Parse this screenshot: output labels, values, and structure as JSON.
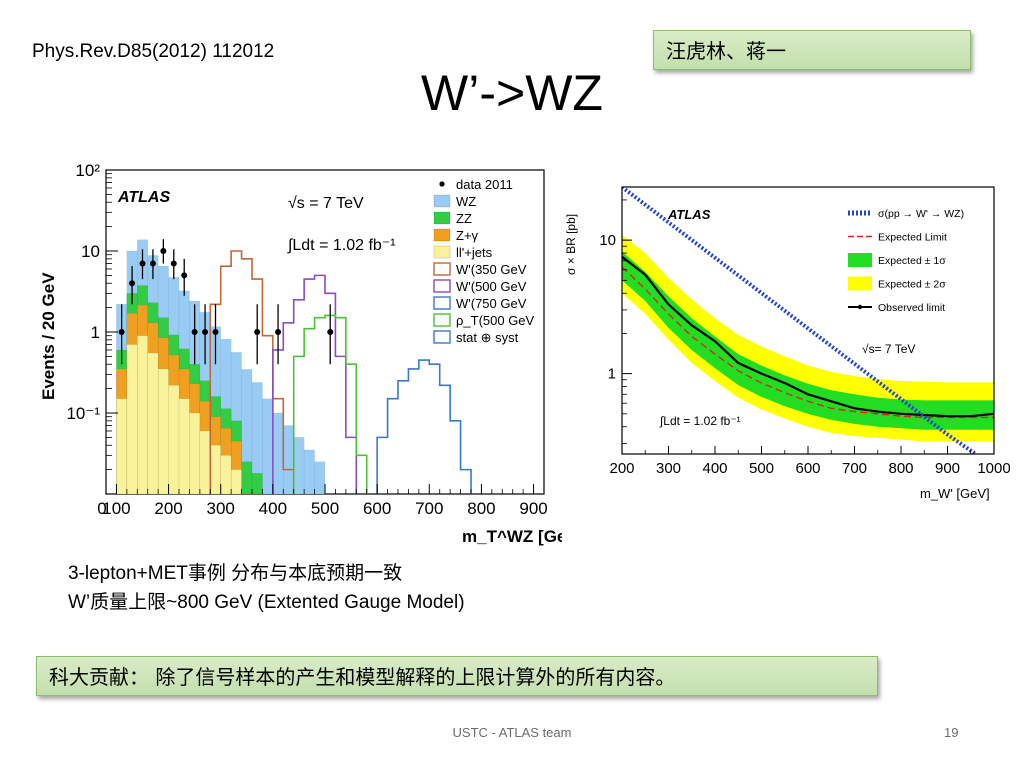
{
  "header": {
    "reference": "Phys.Rev.D85(2012) 112012",
    "title": "W’->WZ",
    "authors": "汪虎林、蒋一"
  },
  "captions": {
    "line1": "3-lepton+MET事例 分布与本底预期一致",
    "line2": "W’质量上限~800 GeV (Extented Gauge Model)"
  },
  "contribution": "科大贡献： 除了信号样本的产生和模型解释的上限计算外的所有内容。",
  "footer": {
    "team": "USTC - ATLAS team",
    "page": "19"
  },
  "chart_data": [
    {
      "type": "bar",
      "title": "",
      "atlas_label": "ATLAS",
      "energy_label": "√s = 7 TeV",
      "lumi_label": "∫Ldt = 1.02 fb⁻¹",
      "xlabel": "m_T^WZ [GeV]",
      "ylabel": "Events / 20 GeV",
      "xlim": [
        80,
        920
      ],
      "ylim": [
        0.01,
        100
      ],
      "yscale": "log",
      "xticks": [
        0,
        100,
        200,
        300,
        400,
        500,
        600,
        700,
        800,
        900
      ],
      "yticks": [
        {
          "value": 100,
          "label": "10²"
        },
        {
          "value": 10,
          "label": "10"
        },
        {
          "value": 1,
          "label": "1"
        },
        {
          "value": 0.1,
          "label": "10⁻¹"
        }
      ],
      "legend_position": "top-right",
      "bin_width": 20,
      "bin_edges_start": 100,
      "stack_colors": {
        "llj": "#f8f29a",
        "zg": "#f0a020",
        "zz": "#33cc44",
        "wz": "#99ccf5"
      },
      "stack_series": [
        {
          "name": "ll'+jets",
          "key": "llj",
          "values": [
            0.15,
            0.7,
            0.9,
            0.55,
            0.35,
            0.22,
            0.15,
            0.1,
            0.06,
            0.04,
            0.03,
            0.02,
            0,
            0,
            0,
            0,
            0,
            0,
            0,
            0
          ]
        },
        {
          "name": "Z+γ",
          "key": "zg",
          "values": [
            0.2,
            1.0,
            1.25,
            0.75,
            0.5,
            0.3,
            0.2,
            0.13,
            0.08,
            0.05,
            0.035,
            0.025,
            0,
            0,
            0,
            0,
            0,
            0,
            0,
            0
          ]
        },
        {
          "name": "ZZ",
          "key": "zz",
          "values": [
            0.25,
            1.3,
            1.6,
            1.0,
            0.65,
            0.4,
            0.27,
            0.17,
            0.11,
            0.07,
            0.048,
            0.035,
            0.025,
            0.018,
            0,
            0,
            0,
            0,
            0,
            0
          ]
        },
        {
          "name": "WZ",
          "key": "wz",
          "values": [
            1.6,
            7,
            10,
            6.5,
            5,
            3.8,
            2.6,
            2.0,
            1.5,
            1.0,
            0.7,
            0.48,
            0.32,
            0.22,
            0.15,
            0.1,
            0.07,
            0.05,
            0.035,
            0.025
          ]
        }
      ],
      "signals": [
        {
          "name": "W'(350 GeV)",
          "color": "#c0683b",
          "x_start": 280,
          "values": [
            2.2,
            6.5,
            10,
            8,
            4.5,
            0.9,
            0.15,
            0.02
          ]
        },
        {
          "name": "W'(500 GeV)",
          "color": "#8a4cc0",
          "x_start": 400,
          "values": [
            0.6,
            1.3,
            2.5,
            4.5,
            5,
            3.0,
            0.5,
            0.05
          ]
        },
        {
          "name": "W'(750 GeV)",
          "color": "#3a78c8",
          "x_start": 600,
          "values": [
            0.05,
            0.15,
            0.25,
            0.35,
            0.45,
            0.4,
            0.22,
            0.08,
            0.02
          ]
        },
        {
          "name": "ρT(500 GeV)",
          "color": "#4cc036",
          "x_start": 440,
          "values": [
            0.5,
            1.1,
            1.5,
            1.6,
            1.5,
            0.4,
            0.03
          ]
        }
      ],
      "legend_entries": [
        {
          "label": "data 2011",
          "kind": "dot",
          "color": "#000000"
        },
        {
          "label": "WZ",
          "kind": "fill",
          "color": "#99ccf5"
        },
        {
          "label": "ZZ",
          "kind": "fill",
          "color": "#33cc44"
        },
        {
          "label": "Z+γ",
          "kind": "fill",
          "color": "#f0a020"
        },
        {
          "label": "ll'+jets",
          "kind": "fill",
          "color": "#f8f29a"
        },
        {
          "label": "W'(350 GeV",
          "kind": "line",
          "color": "#c0683b"
        },
        {
          "label": "W'(500 GeV",
          "kind": "line",
          "color": "#8a4cc0"
        },
        {
          "label": "W'(750 GeV",
          "kind": "line",
          "color": "#3a78c8"
        },
        {
          "label": "ρ_T(500 GeV",
          "kind": "line",
          "color": "#4cc036"
        },
        {
          "label": "stat ⊕ syst",
          "kind": "line",
          "color": "#3a78c8"
        }
      ],
      "data_2011": [
        {
          "x": 110,
          "y": 1.0,
          "up": 2.2,
          "down": 0.4
        },
        {
          "x": 130,
          "y": 4.0,
          "up": 6.5,
          "down": 2.2
        },
        {
          "x": 150,
          "y": 7.0,
          "up": 10.5,
          "down": 4.5
        },
        {
          "x": 170,
          "y": 7.0,
          "up": 10.5,
          "down": 4.5
        },
        {
          "x": 190,
          "y": 10.0,
          "up": 14,
          "down": 7
        },
        {
          "x": 210,
          "y": 7.0,
          "up": 10.5,
          "down": 4.5
        },
        {
          "x": 230,
          "y": 5.0,
          "up": 8,
          "down": 2.8
        },
        {
          "x": 250,
          "y": 1.0,
          "up": 2.2,
          "down": 0.4
        },
        {
          "x": 270,
          "y": 1.0,
          "up": 2.2,
          "down": 0.4
        },
        {
          "x": 290,
          "y": 1.0,
          "up": 2.2,
          "down": 0.4
        },
        {
          "x": 370,
          "y": 1.0,
          "up": 2.2,
          "down": 0.4
        },
        {
          "x": 410,
          "y": 1.0,
          "up": 2.2,
          "down": 0.4
        },
        {
          "x": 510,
          "y": 1.0,
          "up": 2.2,
          "down": 0.4
        }
      ]
    },
    {
      "type": "line",
      "title": "",
      "atlas_label": "ATLAS",
      "energy_label": "√s= 7 TeV",
      "lumi_label": "∫Ldt = 1.02 fb⁻¹",
      "xlabel": "m_W' [GeV]",
      "ylabel": "σ × BR [pb]",
      "xlim": [
        200,
        1000
      ],
      "ylim": [
        0.25,
        25
      ],
      "yscale": "log",
      "xticks": [
        200,
        300,
        400,
        500,
        600,
        700,
        800,
        900,
        1000
      ],
      "yticks": [
        {
          "value": 10,
          "label": "10"
        },
        {
          "value": 1,
          "label": "1"
        }
      ],
      "legend_position": "top-right",
      "legend_entries": [
        {
          "label": "σ(pp → W' → WZ)",
          "kind": "hatch",
          "color": "#2244cc"
        },
        {
          "label": "Expected Limit",
          "kind": "dash",
          "color": "#dd2222"
        },
        {
          "label": "Expected ± 1σ",
          "kind": "fill",
          "color": "#22dd22"
        },
        {
          "label": "Expected ± 2σ",
          "kind": "fill",
          "color": "#ffff00"
        },
        {
          "label": "Observed limit",
          "kind": "line",
          "color": "#000000"
        }
      ],
      "x": [
        200,
        250,
        300,
        350,
        400,
        450,
        500,
        550,
        600,
        650,
        700,
        750,
        800,
        850,
        900,
        950,
        1000
      ],
      "theory": [
        {
          "x": 200,
          "y": 25
        },
        {
          "x": 900,
          "y": 0.35
        },
        {
          "x": 960,
          "y": 0.25
        }
      ],
      "expected": [
        6.3,
        4.3,
        2.8,
        1.9,
        1.4,
        1.05,
        0.85,
        0.72,
        0.62,
        0.55,
        0.52,
        0.5,
        0.48,
        0.47,
        0.47,
        0.47,
        0.47
      ],
      "observed": [
        7.5,
        5.5,
        3.3,
        2.3,
        1.75,
        1.2,
        1.0,
        0.85,
        0.7,
        0.62,
        0.55,
        0.52,
        0.5,
        0.49,
        0.48,
        0.48,
        0.5
      ],
      "band1_low": [
        5.0,
        3.5,
        2.2,
        1.5,
        1.1,
        0.82,
        0.67,
        0.57,
        0.5,
        0.45,
        0.42,
        0.4,
        0.39,
        0.38,
        0.38,
        0.38,
        0.38
      ],
      "band1_high": [
        8.2,
        5.8,
        3.8,
        2.6,
        1.9,
        1.4,
        1.15,
        0.97,
        0.84,
        0.75,
        0.7,
        0.66,
        0.64,
        0.63,
        0.63,
        0.63,
        0.63
      ],
      "band2_low": [
        4.0,
        2.8,
        1.8,
        1.2,
        0.88,
        0.66,
        0.54,
        0.46,
        0.4,
        0.36,
        0.34,
        0.33,
        0.32,
        0.31,
        0.31,
        0.31,
        0.31
      ],
      "band2_high": [
        11.0,
        8.0,
        5.2,
        3.6,
        2.6,
        1.95,
        1.6,
        1.35,
        1.15,
        1.03,
        0.96,
        0.91,
        0.88,
        0.87,
        0.86,
        0.86,
        0.86
      ]
    }
  ]
}
